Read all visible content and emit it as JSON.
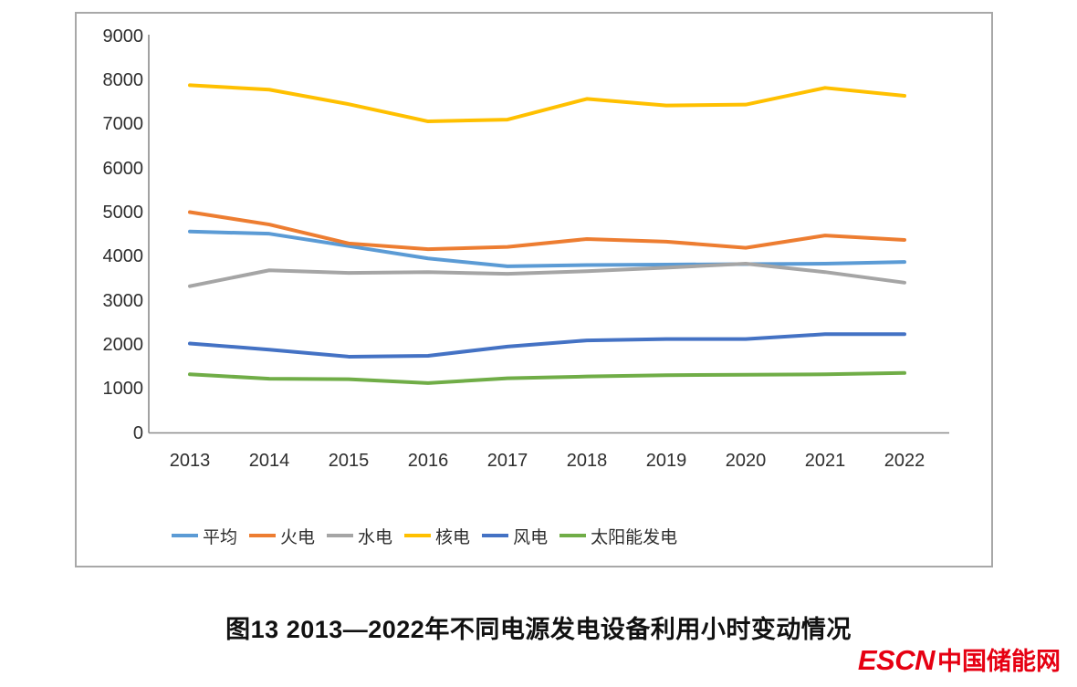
{
  "caption": "图13  2013—2022年不同电源发电设备利用小时变动情况",
  "logo": {
    "abbr": "ESCN",
    "name": "中国储能网",
    "color": "#e60012"
  },
  "colors": {
    "axis_line": "#8a8a8a",
    "chart_border": "#a8a8a8",
    "tick_text": "#2e2e2e"
  },
  "chart_data": {
    "type": "line",
    "title": "",
    "xlabel": "",
    "ylabel": "",
    "categories": [
      "2013",
      "2014",
      "2015",
      "2016",
      "2017",
      "2018",
      "2019",
      "2020",
      "2021",
      "2022"
    ],
    "y_ticks": [
      0,
      1000,
      2000,
      3000,
      4000,
      5000,
      6000,
      7000,
      8000,
      9000
    ],
    "ylim": [
      0,
      9000
    ],
    "grid": false,
    "legend_position": "bottom",
    "series": [
      {
        "name": "平均",
        "color": "#5B9BD5",
        "values": [
          4570,
          4520,
          4240,
          3960,
          3780,
          3810,
          3820,
          3830,
          3840,
          3880
        ]
      },
      {
        "name": "火电",
        "color": "#ED7D31",
        "values": [
          5010,
          4730,
          4300,
          4170,
          4220,
          4400,
          4340,
          4200,
          4480,
          4380
        ]
      },
      {
        "name": "水电",
        "color": "#A5A5A5",
        "values": [
          3330,
          3690,
          3630,
          3650,
          3610,
          3670,
          3750,
          3840,
          3650,
          3410
        ]
      },
      {
        "name": "核电",
        "color": "#FFC000",
        "values": [
          7890,
          7790,
          7460,
          7070,
          7110,
          7580,
          7430,
          7450,
          7830,
          7650
        ]
      },
      {
        "name": "风电",
        "color": "#4472C4",
        "values": [
          2030,
          1890,
          1730,
          1750,
          1960,
          2100,
          2130,
          2130,
          2240,
          2240
        ]
      },
      {
        "name": "太阳能发电",
        "color": "#70AD47",
        "values": [
          1330,
          1230,
          1220,
          1130,
          1240,
          1280,
          1310,
          1320,
          1330,
          1360
        ]
      }
    ]
  }
}
